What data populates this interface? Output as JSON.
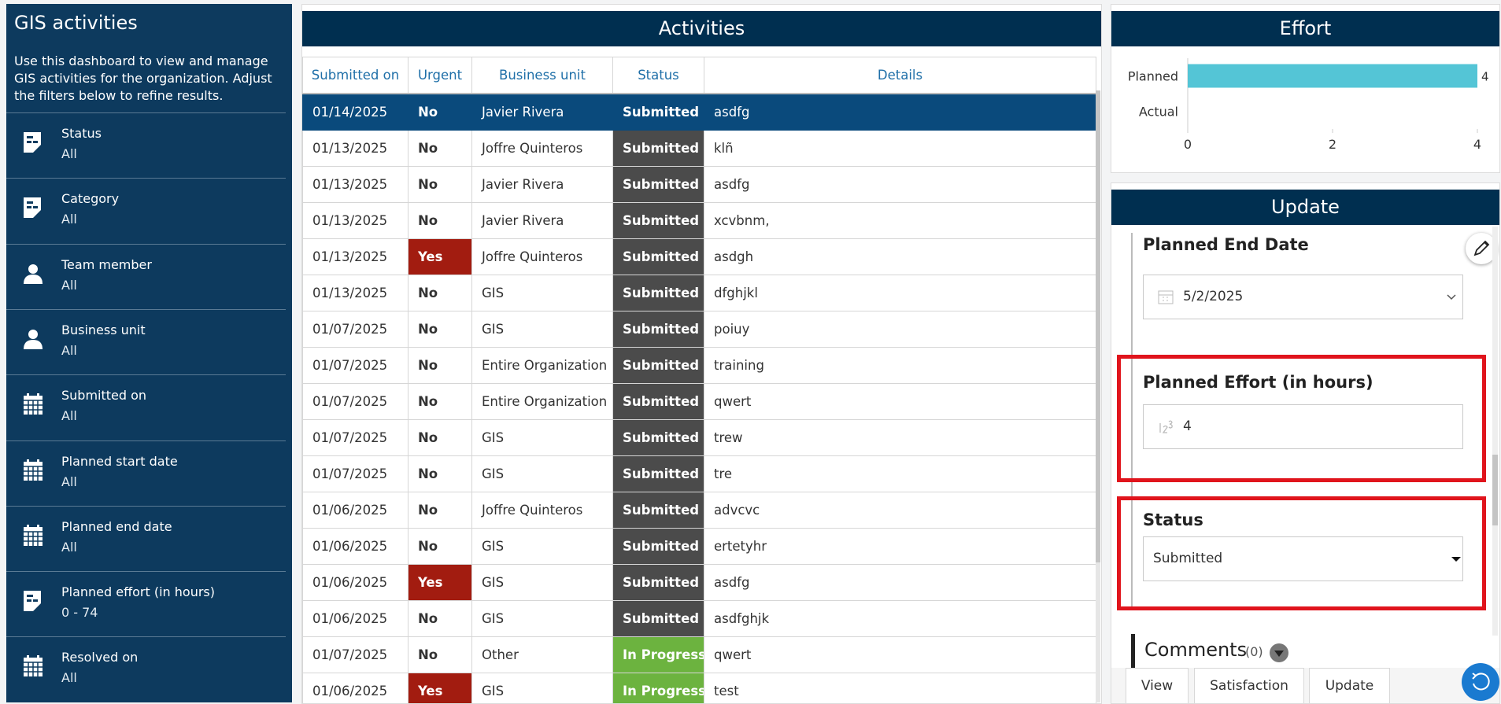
{
  "sidebar": {
    "title": "GIS activities",
    "description": "Use this dashboard to view and manage GIS activities for the organization. Adjust the filters below to refine results.",
    "filters": [
      {
        "label": "Status",
        "value": "All"
      },
      {
        "label": "Category",
        "value": "All"
      },
      {
        "label": "Team member",
        "value": "All"
      },
      {
        "label": "Business unit",
        "value": "All"
      },
      {
        "label": "Submitted on",
        "value": "All"
      },
      {
        "label": "Planned start date",
        "value": "All"
      },
      {
        "label": "Planned end date",
        "value": "All"
      },
      {
        "label": "Planned effort (in hours)",
        "value": "0 - 74"
      },
      {
        "label": "Resolved on",
        "value": "All"
      }
    ]
  },
  "activities": {
    "title": "Activities",
    "columns": [
      "Submitted on",
      "Urgent",
      "Business unit",
      "Status",
      "Details"
    ],
    "rows": [
      [
        "01/14/2025",
        "No",
        "Javier Rivera",
        "Submitted",
        "asdfg"
      ],
      [
        "01/13/2025",
        "No",
        "Joffre Quinteros",
        "Submitted",
        "klñ"
      ],
      [
        "01/13/2025",
        "No",
        "Javier Rivera",
        "Submitted",
        "asdfg"
      ],
      [
        "01/13/2025",
        "No",
        "Javier Rivera",
        "Submitted",
        "xcvbnm,"
      ],
      [
        "01/13/2025",
        "Yes",
        "Joffre Quinteros",
        "Submitted",
        "asdgh"
      ],
      [
        "01/13/2025",
        "No",
        "GIS",
        "Submitted",
        "dfghjkl"
      ],
      [
        "01/07/2025",
        "No",
        "GIS",
        "Submitted",
        "poiuy"
      ],
      [
        "01/07/2025",
        "No",
        "Entire Organization",
        "Submitted",
        "training"
      ],
      [
        "01/07/2025",
        "No",
        "Entire Organization",
        "Submitted",
        "qwert"
      ],
      [
        "01/07/2025",
        "No",
        "GIS",
        "Submitted",
        "trew"
      ],
      [
        "01/07/2025",
        "No",
        "GIS",
        "Submitted",
        "tre"
      ],
      [
        "01/06/2025",
        "No",
        "Joffre Quinteros",
        "Submitted",
        "advcvc"
      ],
      [
        "01/06/2025",
        "No",
        "GIS",
        "Submitted",
        "ertetyhr"
      ],
      [
        "01/06/2025",
        "Yes",
        "GIS",
        "Submitted",
        "asdfg"
      ],
      [
        "01/06/2025",
        "No",
        "GIS",
        "Submitted",
        "asdfghjk"
      ],
      [
        "01/07/2025",
        "No",
        "Other",
        "In Progress",
        "qwert"
      ],
      [
        "01/06/2025",
        "Yes",
        "GIS",
        "In Progress",
        "test"
      ]
    ],
    "selected_row": 0,
    "cell_colors": {
      "Yes": "#a21c10",
      "Submitted": "#4b4b4b",
      "In Progress": "#6cb33f"
    }
  },
  "chart_data": {
    "type": "bar",
    "orientation": "horizontal",
    "title": "Effort",
    "categories": [
      "Planned",
      "Actual"
    ],
    "values": [
      4,
      null
    ],
    "color": "#54c5d6",
    "xlim": [
      0,
      4
    ],
    "xticks": [
      0,
      2,
      4
    ]
  },
  "update": {
    "title": "Update",
    "fields": [
      {
        "label": "Planned End Date",
        "value": "5/2/2025"
      },
      {
        "label": "Planned Effort (in hours)",
        "value": "4"
      },
      {
        "label": "Status",
        "value": "Submitted"
      }
    ],
    "comments": {
      "label": "Comments",
      "count": "(0)"
    },
    "tabs": [
      "View",
      "Satisfaction",
      "Update"
    ],
    "active_tab": 2
  }
}
